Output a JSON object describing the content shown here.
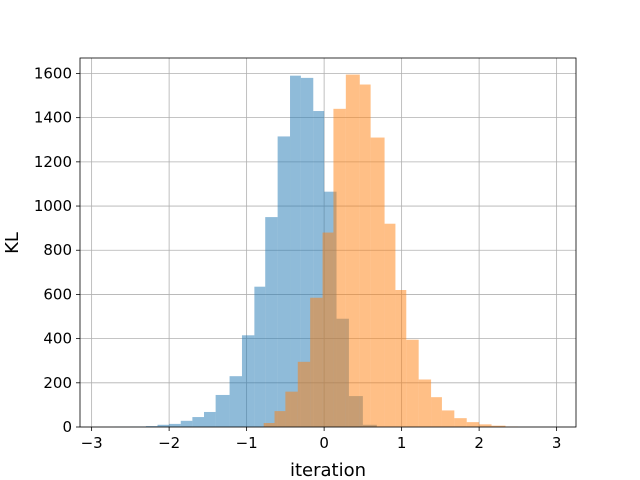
{
  "chart_data": {
    "type": "bar",
    "xlabel": "iteration",
    "ylabel": "KL",
    "xlim": [
      -3.15,
      3.25
    ],
    "ylim": [
      0,
      1670
    ],
    "xticks": [
      -3,
      -2,
      -1,
      0,
      1,
      2,
      3
    ],
    "xtick_labels": [
      "−3",
      "−2",
      "−1",
      "0",
      "1",
      "2",
      "3"
    ],
    "yticks": [
      0,
      200,
      400,
      600,
      800,
      1000,
      1200,
      1400,
      1600
    ],
    "ytick_labels": [
      "0",
      "200",
      "400",
      "600",
      "800",
      "1000",
      "1200",
      "1400",
      "1600"
    ],
    "grid": true,
    "series": [
      {
        "color": "#1f77b4",
        "alpha": 0.5,
        "bin_edges": [
          -2.7,
          -2.5,
          -2.3,
          -2.15,
          -2.0,
          -1.85,
          -1.7,
          -1.55,
          -1.4,
          -1.22,
          -1.06,
          -0.9,
          -0.76,
          -0.6,
          -0.44,
          -0.3,
          -0.14,
          0.0,
          0.16,
          0.32,
          0.5,
          0.68
        ],
        "counts": [
          1,
          2,
          4,
          10,
          14,
          28,
          45,
          68,
          145,
          230,
          415,
          635,
          950,
          1315,
          1590,
          1580,
          1430,
          1065,
          490,
          140,
          10
        ]
      },
      {
        "color": "#ff7f0e",
        "alpha": 0.5,
        "bin_edges": [
          -0.78,
          -0.64,
          -0.5,
          -0.34,
          -0.18,
          -0.02,
          0.12,
          0.28,
          0.46,
          0.6,
          0.78,
          0.92,
          1.06,
          1.22,
          1.38,
          1.52,
          1.68,
          1.84,
          2.0,
          2.16,
          2.34,
          2.5
        ],
        "counts": [
          18,
          72,
          160,
          295,
          585,
          880,
          1440,
          1595,
          1550,
          1310,
          920,
          620,
          395,
          215,
          135,
          75,
          40,
          22,
          12,
          6,
          2
        ]
      }
    ]
  }
}
